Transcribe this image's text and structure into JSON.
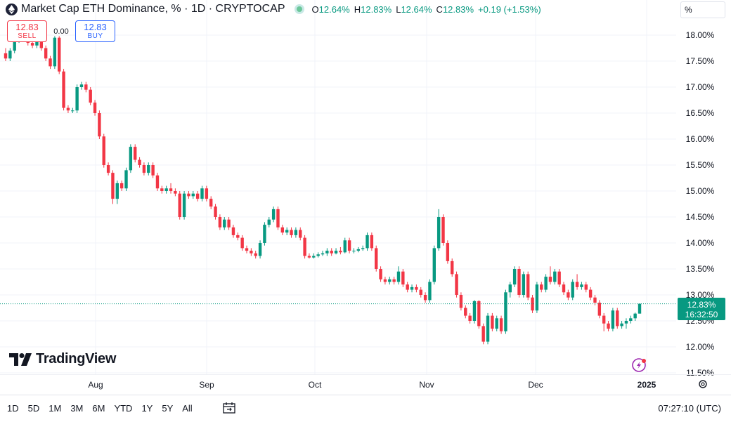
{
  "header": {
    "title": "Market Cap ETH Dominance, % · 1D · CRYPTOCAP",
    "open_label": "O",
    "open": "12.64%",
    "high_label": "H",
    "high": "12.83%",
    "low_label": "L",
    "low": "12.64%",
    "close_label": "C",
    "close": "12.83%",
    "change": "+0.19 (+1.53%)"
  },
  "trade": {
    "sell_price": "12.83",
    "sell_label": "SELL",
    "spread": "0.00",
    "buy_price": "12.83",
    "buy_label": "BUY"
  },
  "scale_button": "%",
  "last_price": {
    "value": "12.83%",
    "countdown": "16:32:50"
  },
  "brand": "TradingView",
  "bottom": {
    "ranges": [
      "1D",
      "5D",
      "1M",
      "3M",
      "6M",
      "YTD",
      "1Y",
      "5Y",
      "All"
    ],
    "time": "07:27:10 (UTC)"
  },
  "colors": {
    "up": "#089981",
    "down": "#f23645",
    "accent": "#2962ff"
  },
  "chart_data": {
    "type": "candlestick",
    "ylim": [
      11.5,
      18.25
    ],
    "y_ticks": [
      "18.00%",
      "17.50%",
      "17.00%",
      "16.50%",
      "16.00%",
      "15.50%",
      "15.00%",
      "14.50%",
      "14.00%",
      "13.50%",
      "13.00%",
      "12.50%",
      "12.00%",
      "11.50%"
    ],
    "x_ticks": [
      "Aug",
      "Sep",
      "Oct",
      "Nov",
      "Dec",
      "2025"
    ],
    "grid": true,
    "series": [
      {
        "points": [
          [
            17.65,
            17.55,
            17.75,
            17.5
          ],
          [
            17.55,
            17.7,
            17.75,
            17.5
          ],
          [
            17.7,
            17.9,
            17.95,
            17.65
          ],
          [
            17.9,
            18.05,
            18.1,
            17.85
          ],
          [
            18.05,
            18.0,
            18.1,
            17.95
          ],
          [
            18.0,
            17.85,
            18.05,
            17.8
          ],
          [
            17.85,
            17.8,
            17.9,
            17.75
          ],
          [
            17.8,
            17.95,
            18.0,
            17.75
          ],
          [
            17.95,
            17.75,
            18.0,
            17.7
          ],
          [
            17.75,
            17.55,
            17.8,
            17.5
          ],
          [
            17.55,
            17.4,
            17.6,
            17.35
          ],
          [
            17.4,
            17.95,
            17.98,
            17.35
          ],
          [
            17.95,
            17.3,
            17.98,
            17.25
          ],
          [
            17.3,
            16.6,
            17.35,
            16.55
          ],
          [
            16.6,
            16.55,
            16.65,
            16.5
          ],
          [
            16.55,
            16.55,
            16.6,
            16.5
          ],
          [
            16.55,
            17.0,
            17.05,
            16.5
          ],
          [
            17.0,
            17.05,
            17.1,
            16.95
          ],
          [
            17.05,
            16.95,
            17.1,
            16.9
          ],
          [
            16.95,
            16.7,
            17.0,
            16.65
          ],
          [
            16.7,
            16.5,
            16.75,
            16.45
          ],
          [
            16.5,
            16.05,
            16.55,
            16.0
          ],
          [
            16.05,
            15.5,
            16.1,
            15.45
          ],
          [
            15.5,
            15.35,
            15.55,
            15.3
          ],
          [
            15.35,
            14.85,
            15.4,
            14.75
          ],
          [
            14.85,
            15.15,
            15.2,
            14.75
          ],
          [
            15.15,
            15.05,
            15.2,
            15.0
          ],
          [
            15.05,
            15.4,
            15.45,
            15.0
          ],
          [
            15.4,
            15.85,
            15.9,
            15.35
          ],
          [
            15.85,
            15.6,
            15.9,
            15.55
          ],
          [
            15.6,
            15.5,
            15.65,
            15.45
          ],
          [
            15.5,
            15.35,
            15.55,
            15.3
          ],
          [
            15.35,
            15.5,
            15.55,
            15.3
          ],
          [
            15.5,
            15.3,
            15.55,
            15.25
          ],
          [
            15.3,
            15.05,
            15.35,
            15.0
          ],
          [
            15.05,
            15.0,
            15.1,
            14.95
          ],
          [
            15.0,
            15.05,
            15.1,
            14.95
          ],
          [
            15.05,
            15.0,
            15.15,
            14.95
          ],
          [
            15.0,
            14.95,
            15.05,
            14.9
          ],
          [
            14.95,
            14.5,
            15.0,
            14.45
          ],
          [
            14.5,
            14.95,
            15.0,
            14.45
          ],
          [
            14.95,
            14.9,
            15.0,
            14.85
          ],
          [
            14.9,
            14.95,
            15.0,
            14.85
          ],
          [
            14.95,
            14.85,
            15.0,
            14.8
          ],
          [
            14.85,
            15.05,
            15.1,
            14.8
          ],
          [
            15.05,
            14.85,
            15.1,
            14.8
          ],
          [
            14.85,
            14.7,
            14.9,
            14.65
          ],
          [
            14.7,
            14.5,
            14.75,
            14.45
          ],
          [
            14.5,
            14.3,
            14.55,
            14.25
          ],
          [
            14.3,
            14.45,
            14.5,
            14.25
          ],
          [
            14.45,
            14.3,
            14.5,
            14.25
          ],
          [
            14.3,
            14.15,
            14.35,
            14.1
          ],
          [
            14.15,
            14.1,
            14.2,
            14.05
          ],
          [
            14.1,
            13.9,
            14.15,
            13.85
          ],
          [
            13.9,
            13.85,
            13.95,
            13.8
          ],
          [
            13.85,
            13.8,
            13.9,
            13.75
          ],
          [
            13.8,
            13.75,
            13.85,
            13.7
          ],
          [
            13.75,
            14.0,
            14.05,
            13.7
          ],
          [
            14.0,
            14.35,
            14.4,
            13.95
          ],
          [
            14.35,
            14.45,
            14.5,
            14.3
          ],
          [
            14.45,
            14.65,
            14.7,
            14.4
          ],
          [
            14.65,
            14.3,
            14.7,
            14.25
          ],
          [
            14.3,
            14.2,
            14.35,
            14.15
          ],
          [
            14.2,
            14.25,
            14.3,
            14.15
          ],
          [
            14.25,
            14.15,
            14.3,
            14.1
          ],
          [
            14.15,
            14.25,
            14.3,
            14.1
          ],
          [
            14.25,
            14.1,
            14.3,
            14.05
          ],
          [
            14.1,
            13.75,
            14.15,
            13.7
          ],
          [
            13.75,
            13.72,
            13.8,
            13.7
          ],
          [
            13.72,
            13.75,
            13.8,
            13.7
          ],
          [
            13.75,
            13.78,
            13.82,
            13.72
          ],
          [
            13.78,
            13.8,
            13.85,
            13.75
          ],
          [
            13.8,
            13.85,
            13.9,
            13.75
          ],
          [
            13.85,
            13.8,
            13.9,
            13.75
          ],
          [
            13.8,
            13.85,
            13.9,
            13.78
          ],
          [
            13.85,
            13.82,
            13.92,
            13.78
          ],
          [
            13.82,
            14.05,
            14.1,
            13.8
          ],
          [
            14.05,
            13.85,
            14.1,
            13.8
          ],
          [
            13.85,
            13.85,
            13.9,
            13.8
          ],
          [
            13.85,
            13.88,
            13.92,
            13.82
          ],
          [
            13.88,
            13.9,
            13.95,
            13.85
          ],
          [
            13.9,
            14.15,
            14.2,
            13.85
          ],
          [
            14.15,
            13.9,
            14.2,
            13.85
          ],
          [
            13.9,
            13.5,
            13.95,
            13.45
          ],
          [
            13.5,
            13.3,
            13.55,
            13.25
          ],
          [
            13.3,
            13.25,
            13.35,
            13.2
          ],
          [
            13.25,
            13.3,
            13.35,
            13.2
          ],
          [
            13.3,
            13.25,
            13.35,
            13.2
          ],
          [
            13.25,
            13.45,
            13.55,
            13.2
          ],
          [
            13.45,
            13.2,
            13.5,
            13.15
          ],
          [
            13.2,
            13.1,
            13.25,
            13.05
          ],
          [
            13.1,
            13.15,
            13.2,
            13.05
          ],
          [
            13.15,
            13.1,
            13.2,
            13.05
          ],
          [
            13.1,
            13.0,
            13.15,
            12.95
          ],
          [
            13.0,
            12.9,
            13.05,
            12.85
          ],
          [
            12.9,
            13.25,
            13.3,
            12.85
          ],
          [
            13.25,
            13.9,
            13.95,
            13.2
          ],
          [
            13.9,
            14.5,
            14.65,
            13.85
          ],
          [
            14.5,
            14.0,
            14.55,
            13.95
          ],
          [
            14.0,
            13.65,
            14.05,
            13.6
          ],
          [
            13.65,
            13.4,
            13.7,
            13.35
          ],
          [
            13.4,
            13.0,
            13.45,
            12.95
          ],
          [
            13.0,
            12.75,
            13.05,
            12.7
          ],
          [
            12.75,
            12.6,
            12.8,
            12.55
          ],
          [
            12.6,
            12.5,
            12.65,
            12.45
          ],
          [
            12.5,
            12.88,
            12.9,
            12.45
          ],
          [
            12.88,
            12.4,
            12.9,
            12.35
          ],
          [
            12.4,
            12.1,
            12.45,
            12.05
          ],
          [
            12.1,
            12.6,
            12.65,
            12.05
          ],
          [
            12.6,
            12.35,
            12.65,
            12.3
          ],
          [
            12.35,
            12.55,
            12.6,
            12.3
          ],
          [
            12.55,
            12.3,
            12.6,
            12.25
          ],
          [
            12.3,
            13.05,
            13.1,
            12.25
          ],
          [
            13.05,
            13.2,
            13.25,
            12.95
          ],
          [
            13.2,
            13.5,
            13.55,
            13.15
          ],
          [
            13.5,
            13.0,
            13.55,
            12.95
          ],
          [
            13.0,
            13.4,
            13.45,
            12.95
          ],
          [
            13.4,
            12.95,
            13.45,
            12.9
          ],
          [
            12.95,
            12.7,
            13.0,
            12.65
          ],
          [
            12.7,
            13.2,
            13.25,
            12.65
          ],
          [
            13.2,
            13.1,
            13.25,
            13.05
          ],
          [
            13.1,
            13.35,
            13.4,
            13.05
          ],
          [
            13.35,
            13.25,
            13.55,
            13.2
          ],
          [
            13.25,
            13.45,
            13.5,
            13.2
          ],
          [
            13.45,
            13.2,
            13.5,
            13.15
          ],
          [
            13.2,
            13.05,
            13.25,
            13.0
          ],
          [
            13.05,
            12.95,
            13.1,
            12.9
          ],
          [
            12.95,
            13.25,
            13.3,
            12.9
          ],
          [
            13.25,
            13.15,
            13.4,
            13.1
          ],
          [
            13.15,
            13.2,
            13.25,
            13.1
          ],
          [
            13.2,
            13.1,
            13.25,
            13.05
          ],
          [
            13.1,
            12.95,
            13.15,
            12.9
          ],
          [
            12.95,
            12.85,
            13.0,
            12.8
          ],
          [
            12.85,
            12.6,
            12.9,
            12.55
          ],
          [
            12.6,
            12.45,
            12.65,
            12.3
          ],
          [
            12.45,
            12.35,
            12.5,
            12.3
          ],
          [
            12.35,
            12.7,
            12.75,
            12.3
          ],
          [
            12.7,
            12.4,
            12.75,
            12.35
          ],
          [
            12.4,
            12.45,
            12.5,
            12.35
          ],
          [
            12.45,
            12.5,
            12.55,
            12.35
          ],
          [
            12.5,
            12.55,
            12.6,
            12.45
          ],
          [
            12.55,
            12.64,
            12.66,
            12.5
          ],
          [
            12.64,
            12.83,
            12.83,
            12.64
          ]
        ]
      }
    ]
  }
}
